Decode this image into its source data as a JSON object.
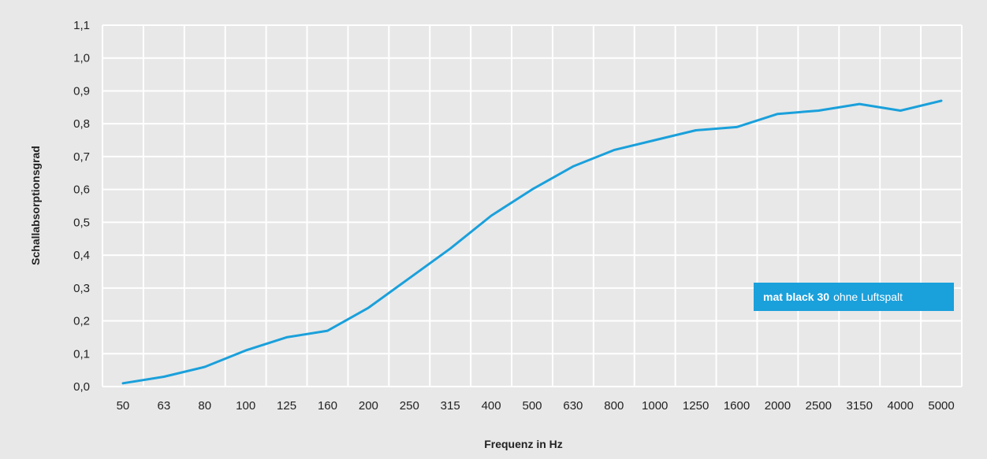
{
  "chart_data": {
    "type": "line",
    "xlabel": "Frequenz in Hz",
    "ylabel": "Schallabsorptionsgrad",
    "categories": [
      "50",
      "63",
      "80",
      "100",
      "125",
      "160",
      "200",
      "250",
      "315",
      "400",
      "500",
      "630",
      "800",
      "1000",
      "1250",
      "1600",
      "2000",
      "2500",
      "3150",
      "4000",
      "5000"
    ],
    "y_ticks": [
      "0,0",
      "0,1",
      "0,2",
      "0,3",
      "0,4",
      "0,5",
      "0,6",
      "0,7",
      "0,8",
      "0,9",
      "1,0",
      "1,1"
    ],
    "ylim": [
      0,
      1.1
    ],
    "grid": true,
    "legend_position": "lower-right",
    "series": [
      {
        "name_strong": "mat black 30",
        "name_light": "ohne Luftspalt",
        "color": "#1aa0db",
        "values": [
          0.01,
          0.03,
          0.06,
          0.11,
          0.15,
          0.17,
          0.24,
          0.33,
          0.42,
          0.52,
          0.6,
          0.67,
          0.72,
          0.75,
          0.78,
          0.79,
          0.83,
          0.84,
          0.86,
          0.84,
          0.87
        ]
      }
    ]
  }
}
